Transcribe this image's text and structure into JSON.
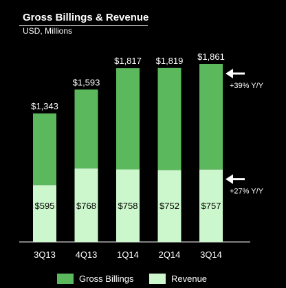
{
  "chart_data": {
    "type": "bar",
    "stacked": false,
    "title": "Gross Billings & Revenue",
    "subtitle": "USD, Millions",
    "categories": [
      "3Q13",
      "4Q13",
      "1Q14",
      "2Q14",
      "3Q14"
    ],
    "series": [
      {
        "name": "Gross Billings",
        "values": [
          1343,
          1593,
          1817,
          1819,
          1861
        ],
        "labels": [
          "$1,343",
          "$1,593",
          "$1,817",
          "$1,819",
          "$1,861"
        ],
        "color": "#5cb85c"
      },
      {
        "name": "Revenue",
        "values": [
          595,
          768,
          758,
          752,
          757
        ],
        "labels": [
          "$595",
          "$768",
          "$758",
          "$752",
          "$757"
        ],
        "color": "#ccf7cc"
      }
    ],
    "ylim": [
      0,
      1861
    ],
    "grid": false,
    "legend_position": "bottom",
    "annotations": [
      {
        "text": "+39% Y/Y",
        "series": "Gross Billings",
        "arrow": "left"
      },
      {
        "text": "+27% Y/Y",
        "series": "Revenue",
        "arrow": "left"
      }
    ]
  },
  "legend": [
    {
      "label": "Gross Billings",
      "color": "#5cb85c"
    },
    {
      "label": "Revenue",
      "color": "#ccf7cc"
    }
  ]
}
